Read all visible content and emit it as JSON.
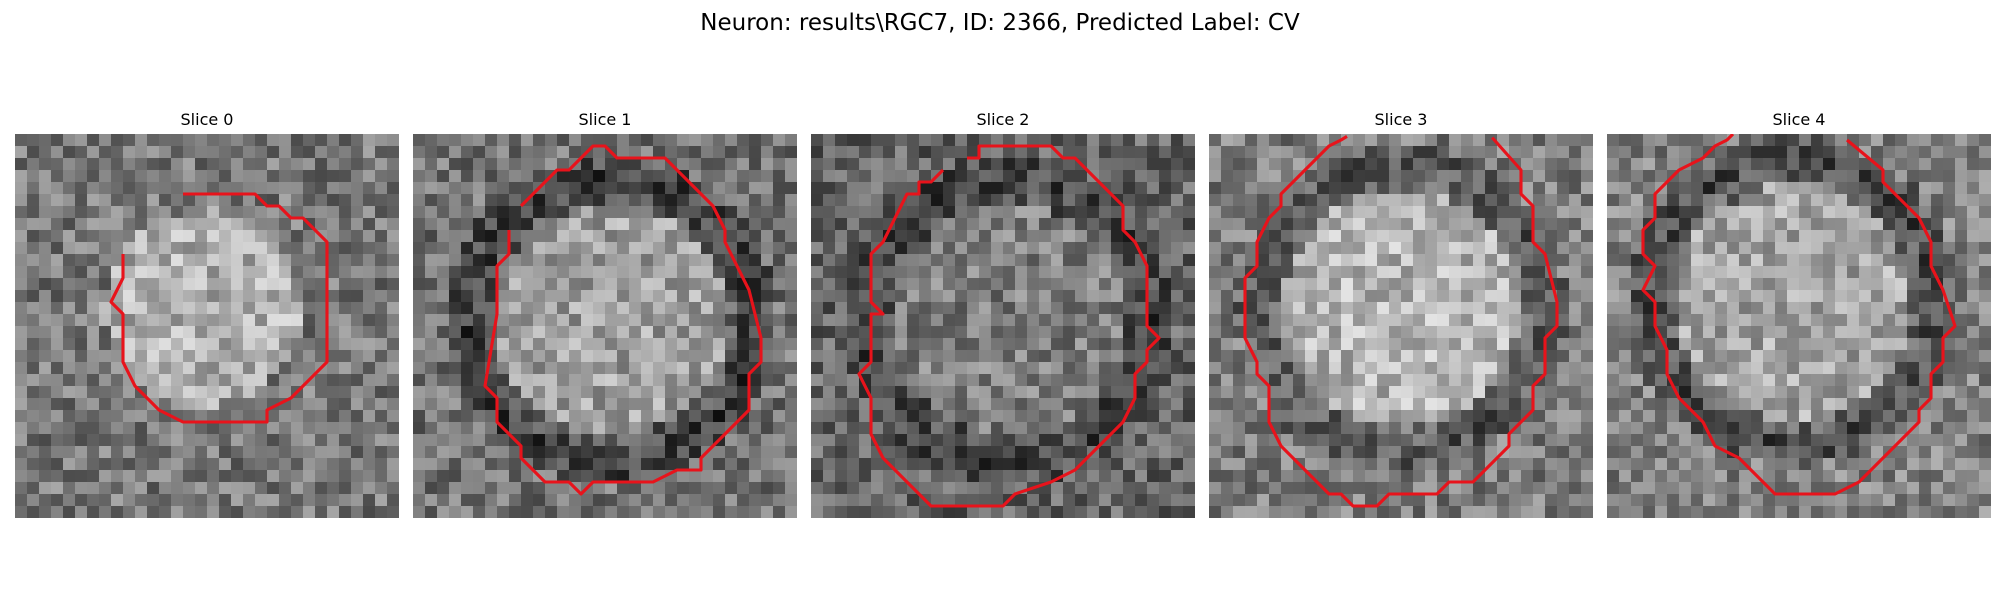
{
  "figure": {
    "title": "Neuron: results\\RGC7, ID: 2366, Predicted Label: CV"
  },
  "colors": {
    "contour": "#e8131b",
    "background": "#ffffff"
  },
  "panels": [
    {
      "title": "Slice 0"
    },
    {
      "title": "Slice 1"
    },
    {
      "title": "Slice 2"
    },
    {
      "title": "Slice 3"
    },
    {
      "title": "Slice 4"
    }
  ]
}
